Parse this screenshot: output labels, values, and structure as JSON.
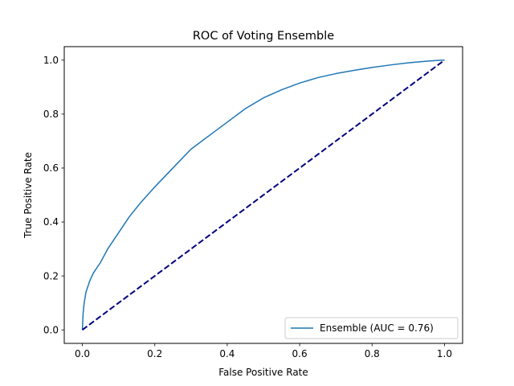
{
  "chart_data": {
    "type": "line",
    "title": "ROC of Voting Ensemble",
    "xlabel": "False Positive Rate",
    "ylabel": "True Positive Rate",
    "xlim": [
      -0.05,
      1.05
    ],
    "ylim": [
      -0.05,
      1.05
    ],
    "xticks": [
      0.0,
      0.2,
      0.4,
      0.6,
      0.8,
      1.0
    ],
    "xtick_labels": [
      "0.0",
      "0.2",
      "0.4",
      "0.6",
      "0.8",
      "1.0"
    ],
    "yticks": [
      0.0,
      0.2,
      0.4,
      0.6,
      0.8,
      1.0
    ],
    "ytick_labels": [
      "0.0",
      "0.2",
      "0.4",
      "0.6",
      "0.8",
      "1.0"
    ],
    "grid": false,
    "legend_position": "lower-right",
    "series": [
      {
        "name": "Ensemble (AUC = 0.76)",
        "color": "#1f77b4",
        "style": "solid",
        "x": [
          0.0,
          0.002,
          0.005,
          0.01,
          0.02,
          0.03,
          0.05,
          0.07,
          0.1,
          0.13,
          0.16,
          0.2,
          0.25,
          0.3,
          0.35,
          0.4,
          0.45,
          0.5,
          0.55,
          0.6,
          0.65,
          0.7,
          0.75,
          0.8,
          0.85,
          0.9,
          0.95,
          0.98,
          1.0
        ],
        "y": [
          0.0,
          0.06,
          0.1,
          0.14,
          0.18,
          0.21,
          0.25,
          0.3,
          0.36,
          0.42,
          0.47,
          0.53,
          0.6,
          0.67,
          0.72,
          0.77,
          0.82,
          0.86,
          0.89,
          0.915,
          0.935,
          0.95,
          0.962,
          0.973,
          0.982,
          0.99,
          0.996,
          0.999,
          1.0
        ]
      },
      {
        "name": "",
        "color": "#000080",
        "style": "dashed",
        "x": [
          0.0,
          1.0
        ],
        "y": [
          0.0,
          1.0
        ]
      }
    ]
  }
}
